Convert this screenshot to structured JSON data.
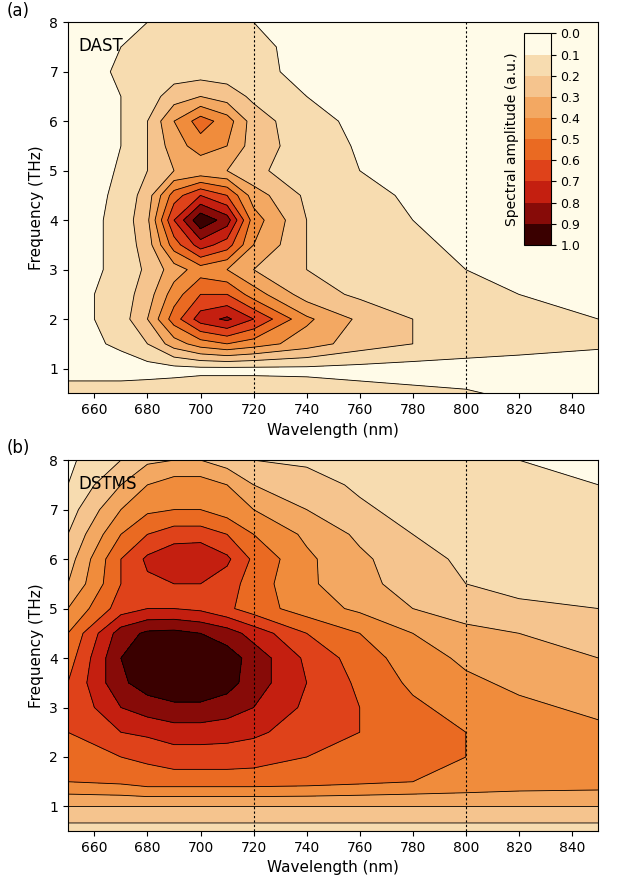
{
  "chart_data": [
    {
      "type": "contour",
      "panel_label": "(a)",
      "annotation": "DAST",
      "xlabel": "Wavelength (nm)",
      "ylabel": "Frequency (THz)",
      "xlim": [
        650,
        850
      ],
      "ylim": [
        0.5,
        8
      ],
      "xticks": [
        660,
        680,
        700,
        720,
        740,
        760,
        780,
        800,
        820,
        840
      ],
      "yticks": [
        1,
        2,
        3,
        4,
        5,
        6,
        7,
        8
      ],
      "vlines": [
        720,
        800
      ],
      "colors": [
        "#fffbe8",
        "#f7dcb0",
        "#f5c48e",
        "#f3a862",
        "#f08c3c",
        "#ea6a22",
        "#df421a",
        "#c41f10",
        "#870b08",
        "#3a0000"
      ],
      "colorbar": {
        "label": "Spectral amplitude (a.u.)",
        "lim": [
          0,
          1
        ],
        "ticks": [
          {
            "value": 0,
            "label": "0.0"
          },
          {
            "value": 0.1,
            "label": "0.1"
          },
          {
            "value": 0.2,
            "label": "0.2"
          },
          {
            "value": 0.3,
            "label": "0.3"
          },
          {
            "value": 0.4,
            "label": "0.4"
          },
          {
            "value": 0.5,
            "label": "0.5"
          },
          {
            "value": 0.6,
            "label": "0.6"
          },
          {
            "value": 0.7,
            "label": "0.7"
          },
          {
            "value": 0.8,
            "label": "0.8"
          },
          {
            "value": 0.9,
            "label": "0.9"
          },
          {
            "value": 1,
            "label": "1.0"
          }
        ]
      },
      "x": [
        650,
        670,
        680,
        690,
        700,
        710,
        720,
        740,
        760,
        780,
        800,
        820,
        850
      ],
      "y": [
        0.5,
        1.0,
        1.5,
        2.0,
        2.5,
        3.0,
        3.5,
        4.0,
        4.5,
        5.0,
        5.5,
        6.0,
        6.5,
        7.0,
        7.5,
        8.0
      ],
      "values": [
        [
          0.15,
          0.15,
          0.15,
          0.15,
          0.15,
          0.15,
          0.15,
          0.14,
          0.13,
          0.12,
          0.11,
          0.08,
          0.06
        ],
        [
          0.05,
          0.05,
          0.06,
          0.07,
          0.08,
          0.08,
          0.08,
          0.08,
          0.07,
          0.06,
          0.05,
          0.04,
          0.03
        ],
        [
          0.05,
          0.12,
          0.2,
          0.35,
          0.45,
          0.5,
          0.45,
          0.35,
          0.25,
          0.2,
          0.17,
          0.15,
          0.12
        ],
        [
          0.05,
          0.15,
          0.3,
          0.55,
          0.75,
          0.82,
          0.7,
          0.42,
          0.28,
          0.2,
          0.15,
          0.12,
          0.1
        ],
        [
          0.05,
          0.15,
          0.25,
          0.45,
          0.6,
          0.6,
          0.45,
          0.25,
          0.18,
          0.14,
          0.12,
          0.1,
          0.08
        ],
        [
          0.04,
          0.13,
          0.22,
          0.35,
          0.45,
          0.4,
          0.3,
          0.2,
          0.15,
          0.12,
          0.1,
          0.08,
          0.06
        ],
        [
          0.04,
          0.13,
          0.25,
          0.55,
          0.75,
          0.65,
          0.4,
          0.2,
          0.15,
          0.11,
          0.09,
          0.07,
          0.05
        ],
        [
          0.04,
          0.13,
          0.28,
          0.7,
          0.98,
          0.85,
          0.45,
          0.2,
          0.14,
          0.1,
          0.08,
          0.06,
          0.04
        ],
        [
          0.04,
          0.12,
          0.25,
          0.55,
          0.7,
          0.6,
          0.35,
          0.18,
          0.12,
          0.09,
          0.07,
          0.05,
          0.04
        ],
        [
          0.03,
          0.11,
          0.2,
          0.3,
          0.32,
          0.3,
          0.22,
          0.15,
          0.1,
          0.08,
          0.06,
          0.04,
          0.03
        ],
        [
          0.03,
          0.1,
          0.2,
          0.35,
          0.45,
          0.4,
          0.25,
          0.15,
          0.09,
          0.06,
          0.04,
          0.03,
          0.02
        ],
        [
          0.02,
          0.1,
          0.2,
          0.4,
          0.55,
          0.45,
          0.25,
          0.13,
          0.08,
          0.05,
          0.03,
          0.02,
          0.02
        ],
        [
          0.02,
          0.1,
          0.15,
          0.25,
          0.3,
          0.25,
          0.18,
          0.1,
          0.06,
          0.04,
          0.03,
          0.02,
          0.02
        ],
        [
          0.02,
          0.12,
          0.15,
          0.15,
          0.15,
          0.15,
          0.12,
          0.08,
          0.05,
          0.03,
          0.02,
          0.02,
          0.02
        ],
        [
          0.02,
          0.1,
          0.13,
          0.15,
          0.18,
          0.18,
          0.13,
          0.06,
          0.04,
          0.03,
          0.02,
          0.01,
          0.01
        ],
        [
          0.01,
          0.05,
          0.1,
          0.12,
          0.2,
          0.2,
          0.1,
          0.05,
          0.03,
          0.02,
          0.01,
          0.01,
          0.01
        ]
      ]
    },
    {
      "type": "contour",
      "panel_label": "(b)",
      "annotation": "DSTMS",
      "xlabel": "Wavelength (nm)",
      "ylabel": "Frequency (THz)",
      "xlim": [
        650,
        850
      ],
      "ylim": [
        0.5,
        8
      ],
      "xticks": [
        660,
        680,
        700,
        720,
        740,
        760,
        780,
        800,
        820,
        840
      ],
      "yticks": [
        1,
        2,
        3,
        4,
        5,
        6,
        7,
        8
      ],
      "vlines": [
        720,
        800
      ],
      "colors": [
        "#fffbe8",
        "#f7dcb0",
        "#f5c48e",
        "#f3a862",
        "#f08c3c",
        "#ea6a22",
        "#df421a",
        "#c41f10",
        "#870b08",
        "#3a0000"
      ],
      "x": [
        650,
        670,
        680,
        690,
        700,
        710,
        720,
        740,
        760,
        780,
        800,
        820,
        850
      ],
      "y": [
        0.5,
        1.0,
        1.5,
        2.0,
        2.5,
        3.0,
        3.5,
        4.0,
        4.5,
        5.0,
        5.5,
        6.0,
        6.5,
        7.0,
        7.5,
        8.0
      ],
      "values": [
        [
          0.15,
          0.15,
          0.15,
          0.15,
          0.15,
          0.15,
          0.15,
          0.15,
          0.15,
          0.15,
          0.15,
          0.15,
          0.15
        ],
        [
          0.3,
          0.3,
          0.3,
          0.3,
          0.3,
          0.3,
          0.3,
          0.3,
          0.3,
          0.3,
          0.3,
          0.3,
          0.3
        ],
        [
          0.5,
          0.52,
          0.55,
          0.55,
          0.55,
          0.55,
          0.55,
          0.54,
          0.52,
          0.5,
          0.48,
          0.46,
          0.45
        ],
        [
          0.55,
          0.6,
          0.62,
          0.65,
          0.65,
          0.65,
          0.64,
          0.6,
          0.56,
          0.52,
          0.5,
          0.47,
          0.45
        ],
        [
          0.6,
          0.7,
          0.72,
          0.75,
          0.75,
          0.74,
          0.72,
          0.65,
          0.6,
          0.55,
          0.5,
          0.45,
          0.42
        ],
        [
          0.6,
          0.8,
          0.85,
          0.88,
          0.88,
          0.85,
          0.8,
          0.68,
          0.6,
          0.52,
          0.46,
          0.42,
          0.38
        ],
        [
          0.6,
          0.88,
          0.95,
          0.97,
          0.97,
          0.94,
          0.85,
          0.7,
          0.58,
          0.48,
          0.42,
          0.38,
          0.34
        ],
        [
          0.55,
          0.9,
          0.98,
          1.0,
          0.98,
          0.95,
          0.86,
          0.68,
          0.55,
          0.45,
          0.38,
          0.34,
          0.3
        ],
        [
          0.5,
          0.85,
          0.92,
          0.93,
          0.9,
          0.85,
          0.76,
          0.6,
          0.5,
          0.4,
          0.33,
          0.3,
          0.26
        ],
        [
          0.4,
          0.65,
          0.7,
          0.7,
          0.68,
          0.62,
          0.55,
          0.45,
          0.38,
          0.3,
          0.25,
          0.22,
          0.2
        ],
        [
          0.3,
          0.6,
          0.68,
          0.7,
          0.7,
          0.65,
          0.55,
          0.42,
          0.33,
          0.26,
          0.2,
          0.17,
          0.15
        ],
        [
          0.25,
          0.6,
          0.72,
          0.78,
          0.8,
          0.72,
          0.58,
          0.42,
          0.32,
          0.24,
          0.18,
          0.15,
          0.2
        ],
        [
          0.2,
          0.5,
          0.6,
          0.65,
          0.65,
          0.6,
          0.5,
          0.38,
          0.28,
          0.2,
          0.15,
          0.13,
          0.15
        ],
        [
          0.15,
          0.4,
          0.48,
          0.5,
          0.5,
          0.45,
          0.4,
          0.3,
          0.22,
          0.16,
          0.12,
          0.12,
          0.12
        ],
        [
          0.1,
          0.3,
          0.4,
          0.45,
          0.45,
          0.4,
          0.3,
          0.25,
          0.18,
          0.14,
          0.11,
          0.11,
          0.1
        ],
        [
          0.08,
          0.2,
          0.28,
          0.3,
          0.3,
          0.25,
          0.2,
          0.18,
          0.15,
          0.12,
          0.1,
          0.1,
          0.1
        ]
      ]
    }
  ]
}
